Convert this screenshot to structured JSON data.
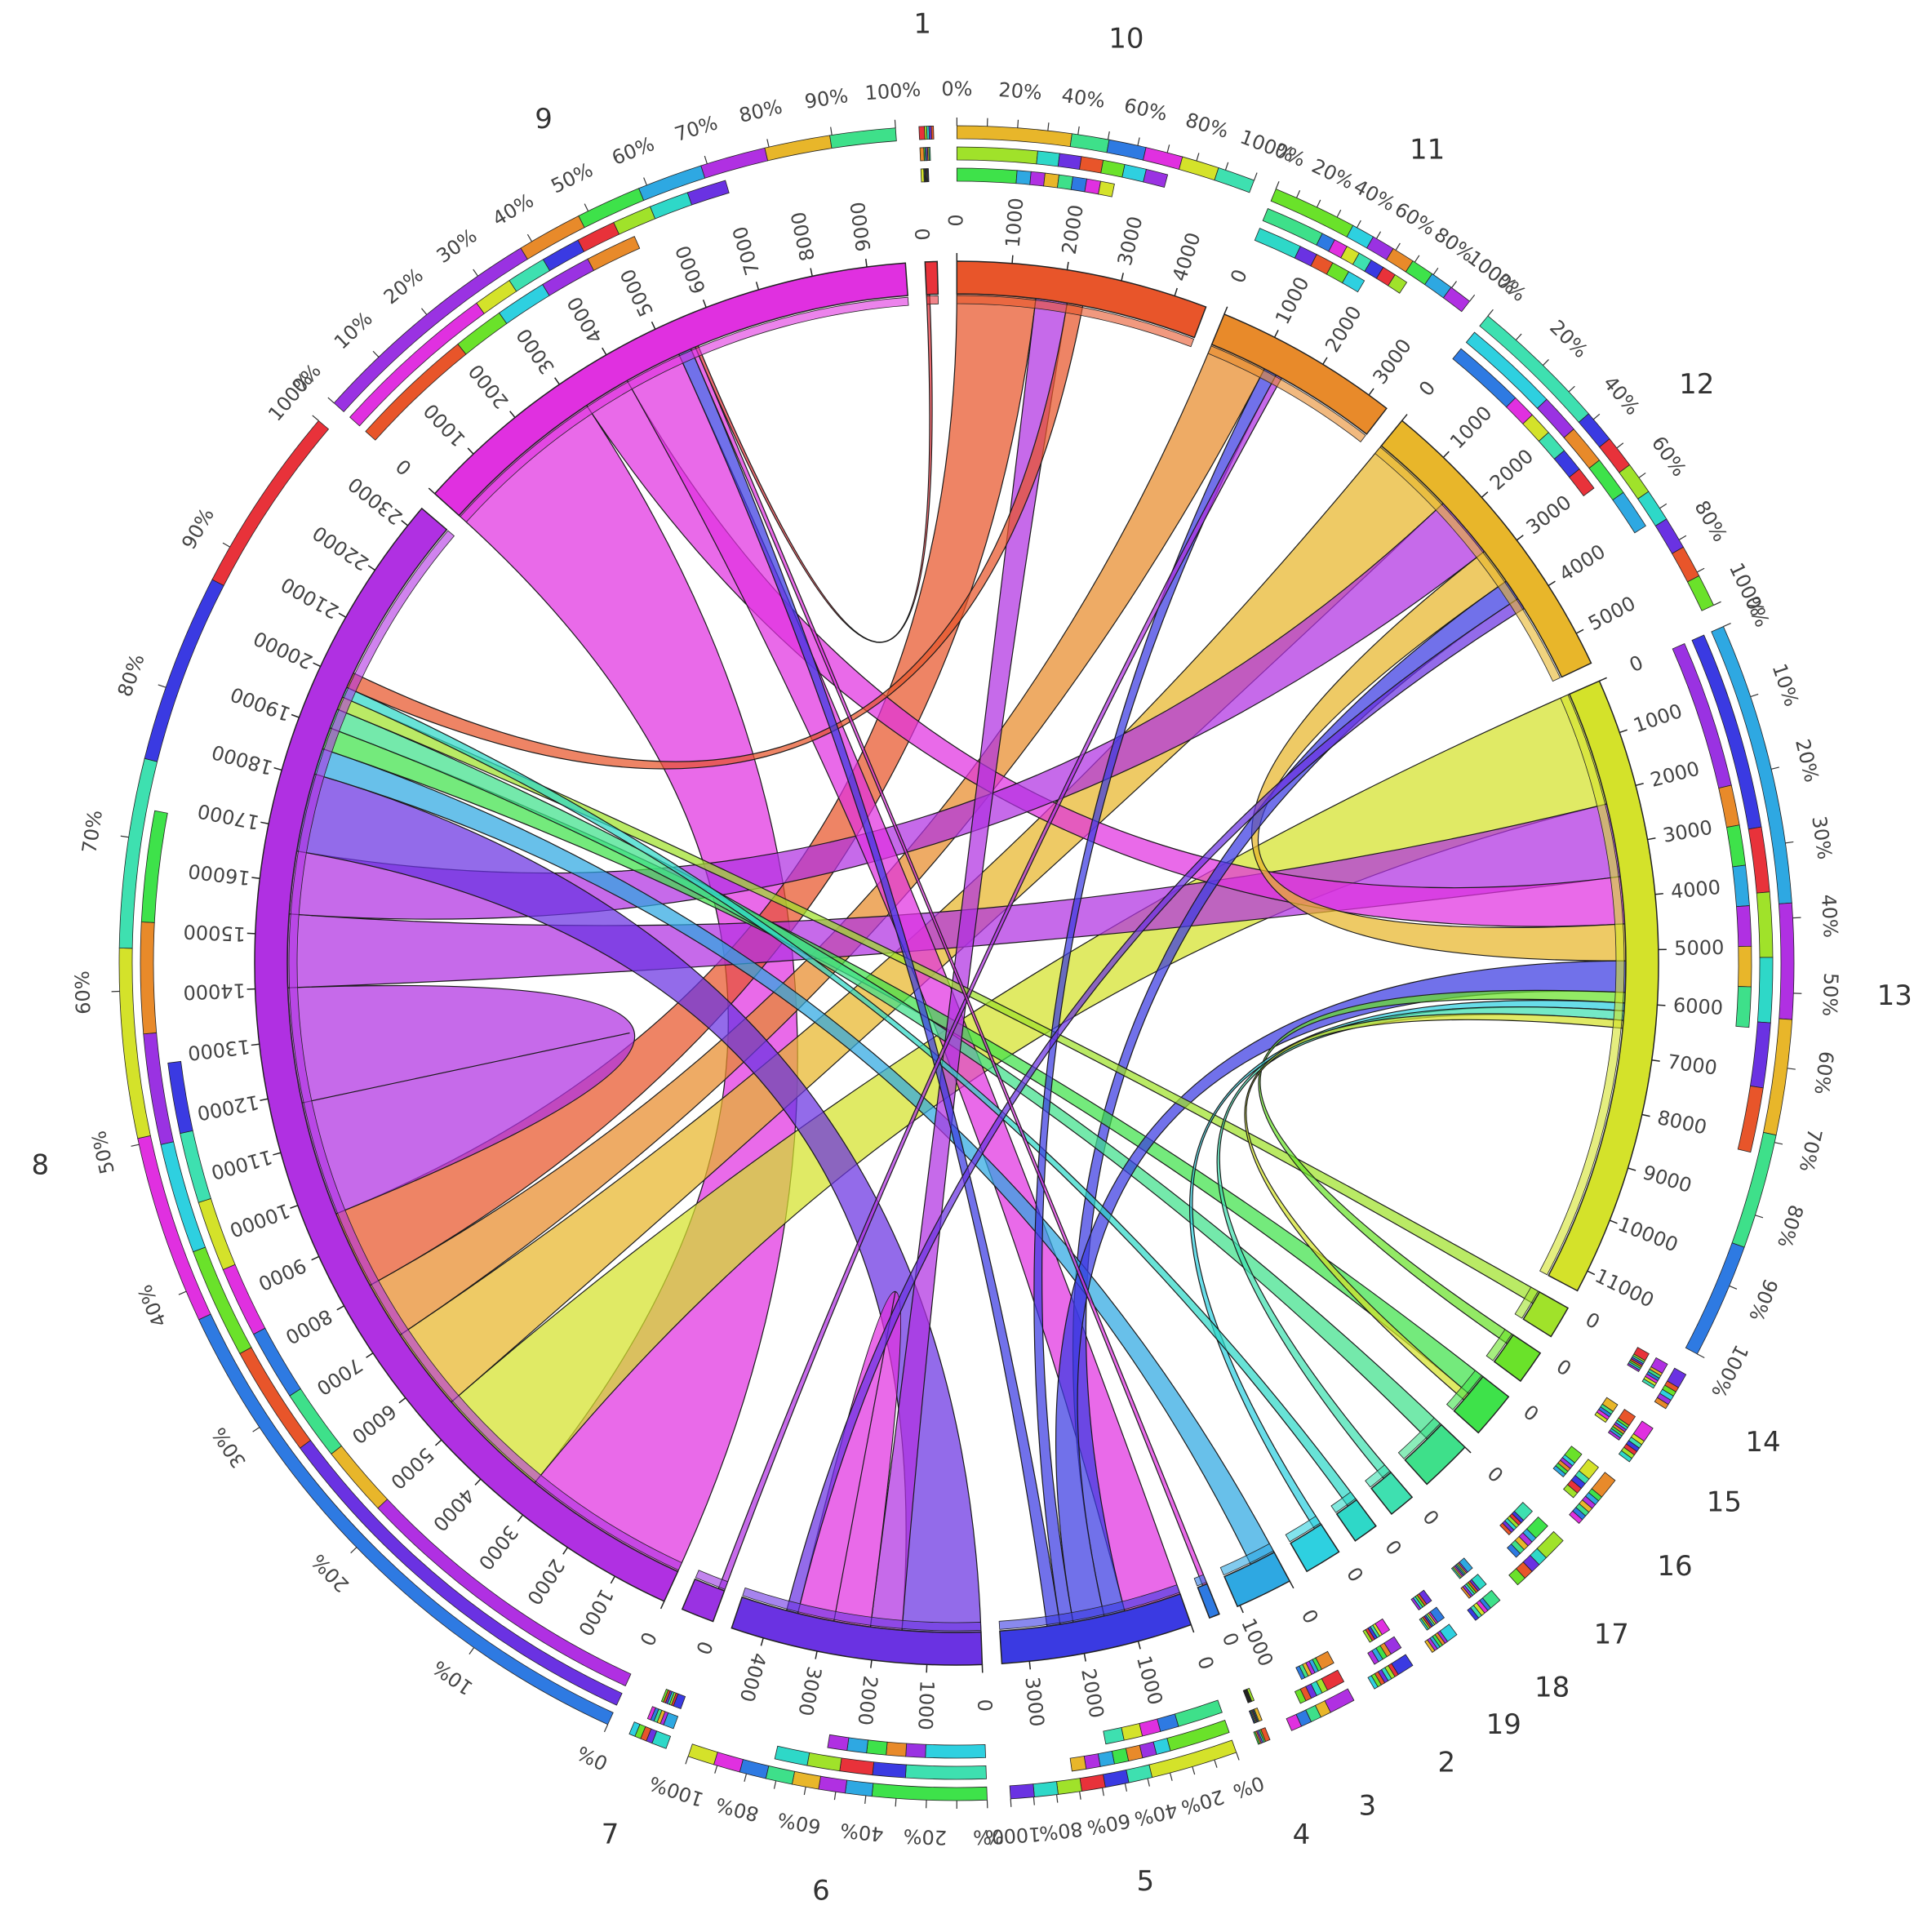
{
  "chart_data": {
    "type": "chord",
    "title": "",
    "segments": [
      {
        "label": "1",
        "value": 220,
        "color": "#e8323a"
      },
      {
        "label": "10",
        "value": 4600,
        "color": "#e8552a"
      },
      {
        "label": "11",
        "value": 3400,
        "color": "#e88a2a"
      },
      {
        "label": "12",
        "value": 5600,
        "color": "#e8b62a"
      },
      {
        "label": "13",
        "value": 11400,
        "color": "#d4e22a"
      },
      {
        "label": "14",
        "value": 600,
        "color": "#a0e22a"
      },
      {
        "label": "15",
        "value": 620,
        "color": "#6ae22a"
      },
      {
        "label": "16",
        "value": 850,
        "color": "#3ee24a"
      },
      {
        "label": "17",
        "value": 960,
        "color": "#3ee08a"
      },
      {
        "label": "18",
        "value": 480,
        "color": "#3ee0b0"
      },
      {
        "label": "19",
        "value": 460,
        "color": "#2ed8c8"
      },
      {
        "label": "2",
        "value": 680,
        "color": "#2ed0e0"
      },
      {
        "label": "3",
        "value": 1050,
        "color": "#2ea8e2"
      },
      {
        "label": "4",
        "value": 190,
        "color": "#2e7ae2"
      },
      {
        "label": "5",
        "value": 3500,
        "color": "#3a3ae2"
      },
      {
        "label": "6",
        "value": 4600,
        "color": "#6a32e2"
      },
      {
        "label": "7",
        "value": 600,
        "color": "#9a32e2"
      },
      {
        "label": "8",
        "value": 23400,
        "color": "#b030e2"
      },
      {
        "label": "9",
        "value": 9700,
        "color": "#e030e0"
      }
    ],
    "flows": [
      {
        "from": "9",
        "to": "8",
        "value": 3200,
        "color": "#e030e0"
      },
      {
        "from": "8",
        "to": "13",
        "value": 2200,
        "color": "#d4e22a"
      },
      {
        "from": "8",
        "to": "12",
        "value": 1600,
        "color": "#e8b62a"
      },
      {
        "from": "8",
        "to": "11",
        "value": 1100,
        "color": "#e88a2a"
      },
      {
        "from": "8",
        "to": "10",
        "value": 1500,
        "color": "#e8552a"
      },
      {
        "from": "8",
        "to": "8",
        "value": 2200,
        "color": "#b030e2"
      },
      {
        "from": "13",
        "to": "8",
        "value": 1400,
        "color": "#b030e2"
      },
      {
        "from": "13",
        "to": "9",
        "value": 900,
        "color": "#e030e0"
      },
      {
        "from": "12",
        "to": "8",
        "value": 1200,
        "color": "#b030e2"
      },
      {
        "from": "12",
        "to": "13",
        "value": 700,
        "color": "#e8b62a"
      },
      {
        "from": "6",
        "to": "8",
        "value": 1500,
        "color": "#6a32e2"
      },
      {
        "from": "5",
        "to": "9",
        "value": 1100,
        "color": "#e030e0"
      },
      {
        "from": "5",
        "to": "12",
        "value": 400,
        "color": "#3a3ae2"
      },
      {
        "from": "3",
        "to": "8",
        "value": 500,
        "color": "#2ea8e2"
      },
      {
        "from": "16",
        "to": "8",
        "value": 420,
        "color": "#3ee24a"
      },
      {
        "from": "17",
        "to": "8",
        "value": 380,
        "color": "#3ee08a"
      },
      {
        "from": "10",
        "to": "6",
        "value": 600,
        "color": "#b030e2"
      },
      {
        "from": "6",
        "to": "6",
        "value": 700,
        "color": "#e030e0"
      },
      {
        "from": "13",
        "to": "5",
        "value": 600,
        "color": "#3a3ae2"
      },
      {
        "from": "14",
        "to": "8",
        "value": 250,
        "color": "#a0e22a"
      },
      {
        "from": "15",
        "to": "13",
        "value": 200,
        "color": "#6ae22a"
      },
      {
        "from": "2",
        "to": "13",
        "value": 150,
        "color": "#2ed0e0"
      },
      {
        "from": "19",
        "to": "8",
        "value": 200,
        "color": "#2ed8c8"
      },
      {
        "from": "18",
        "to": "13",
        "value": 180,
        "color": "#3ee0b0"
      },
      {
        "from": "11",
        "to": "5",
        "value": 250,
        "color": "#3a3ae2"
      },
      {
        "from": "10",
        "to": "8",
        "value": 300,
        "color": "#e8552a"
      },
      {
        "from": "9",
        "to": "5",
        "value": 250,
        "color": "#3a3ae2"
      },
      {
        "from": "12",
        "to": "6",
        "value": 220,
        "color": "#6a32e2"
      },
      {
        "from": "13",
        "to": "16",
        "value": 150,
        "color": "#d4e22a"
      },
      {
        "from": "11",
        "to": "7",
        "value": 120,
        "color": "#b030e2"
      },
      {
        "from": "4",
        "to": "9",
        "value": 90,
        "color": "#e030e0"
      },
      {
        "from": "1",
        "to": "9",
        "value": 60,
        "color": "#e8323a"
      }
    ],
    "percent_ticks": [
      "0%",
      "10%",
      "20%",
      "30%",
      "40%",
      "50%",
      "60%",
      "70%",
      "80%",
      "90%",
      "100%"
    ]
  }
}
